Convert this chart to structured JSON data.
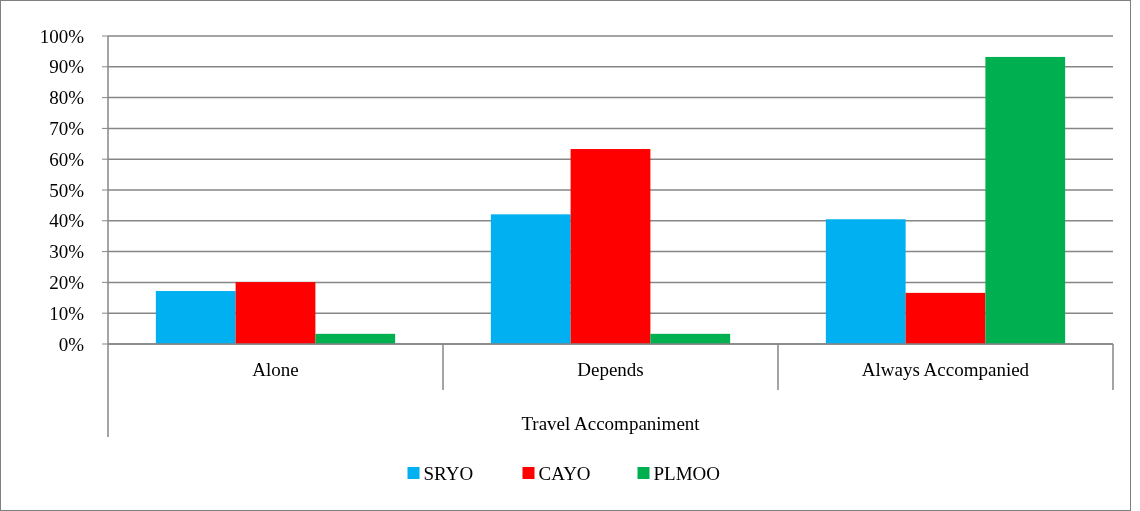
{
  "chart_data": {
    "type": "bar",
    "xlabel": "Travel Accompaniment",
    "categories": [
      "Alone",
      "Depends",
      "Always Accompanied"
    ],
    "series": [
      {
        "name": "SRYO",
        "color": "#00b0f0",
        "values": [
          17.2,
          42.1,
          40.5
        ]
      },
      {
        "name": "CAYO",
        "color": "#ff0000",
        "values": [
          20.1,
          63.3,
          16.6
        ]
      },
      {
        "name": "PLMOO",
        "color": "#00b050",
        "values": [
          3.3,
          3.3,
          93.2
        ]
      }
    ],
    "ylim": [
      0,
      100
    ],
    "yticks": [
      {
        "value": 0,
        "label": "0%"
      },
      {
        "value": 10,
        "label": "10%"
      },
      {
        "value": 20,
        "label": "20%"
      },
      {
        "value": 30,
        "label": "30%"
      },
      {
        "value": 40,
        "label": "40%"
      },
      {
        "value": 50,
        "label": "50%"
      },
      {
        "value": 60,
        "label": "60%"
      },
      {
        "value": 70,
        "label": "70%"
      },
      {
        "value": 80,
        "label": "80%"
      },
      {
        "value": 90,
        "label": "90%"
      },
      {
        "value": 100,
        "label": "100%"
      }
    ],
    "grid": "y",
    "legend": "bottom"
  }
}
